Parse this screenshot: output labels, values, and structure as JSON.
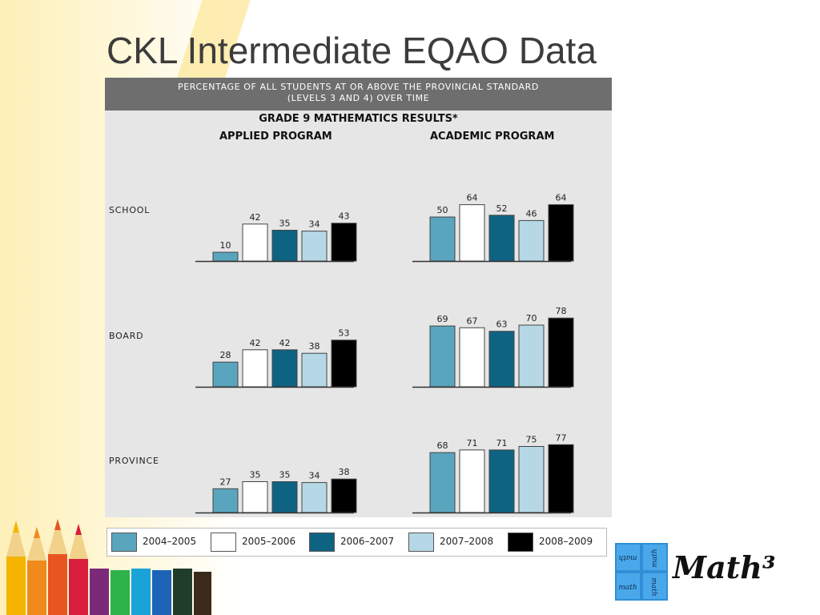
{
  "slide": {
    "title": "CKL Intermediate EQAO Data"
  },
  "logo": {
    "text": "Math³",
    "box_words": [
      "math",
      "math",
      "math",
      "math"
    ]
  },
  "chart_data": {
    "type": "bar",
    "title_lines": [
      "PERCENTAGE OF ALL STUDENTS AT OR ABOVE THE PROVINCIAL STANDARD",
      "(LEVELS 3 AND 4) OVER TIME"
    ],
    "subtitle": "GRADE 9 MATHEMATICS RESULTS*",
    "programs": [
      "APPLIED PROGRAM",
      "ACADEMIC PROGRAM"
    ],
    "groups": [
      "SCHOOL",
      "BOARD",
      "PROVINCE"
    ],
    "series_names": [
      "2004–2005",
      "2005–2006",
      "2006–2007",
      "2007–2008",
      "2008–2009"
    ],
    "colors": [
      "#5aa5be",
      "#ffffff",
      "#0f6382",
      "#b6d8e6",
      "#000000"
    ],
    "values": {
      "APPLIED PROGRAM": {
        "SCHOOL": [
          10,
          42,
          35,
          34,
          43
        ],
        "BOARD": [
          28,
          42,
          42,
          38,
          53
        ],
        "PROVINCE": [
          27,
          35,
          35,
          34,
          38
        ]
      },
      "ACADEMIC PROGRAM": {
        "SCHOOL": [
          50,
          64,
          52,
          46,
          64
        ],
        "BOARD": [
          69,
          67,
          63,
          70,
          78
        ],
        "PROVINCE": [
          68,
          71,
          71,
          75,
          77
        ]
      }
    },
    "ylim": [
      0,
      100
    ],
    "legend_position": "bottom"
  }
}
